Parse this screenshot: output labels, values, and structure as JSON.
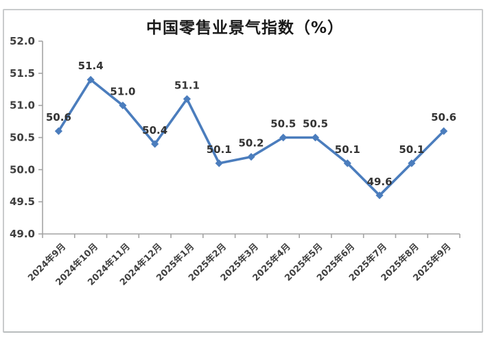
{
  "figure": {
    "title": "中国零售业景气指数（%）"
  },
  "chart_data": {
    "type": "line",
    "title": "中国零售业景气指数（%）",
    "categories": [
      "2024年9月",
      "2024年10月",
      "2024年11月",
      "2024年12月",
      "2025年1月",
      "2025年2月",
      "2025年3月",
      "2025年4月",
      "2025年5月",
      "2025年6月",
      "2025年7月",
      "2025年8月",
      "2025年9月"
    ],
    "values": [
      50.6,
      51.4,
      51.0,
      50.4,
      51.1,
      50.1,
      50.2,
      50.5,
      50.5,
      50.1,
      49.6,
      50.1,
      50.6
    ],
    "data_labels": [
      "50.6",
      "51.4",
      "51.0",
      "50.4",
      "51.1",
      "50.1",
      "50.2",
      "50.5",
      "50.5",
      "50.1",
      "49.6",
      "50.1",
      "50.6"
    ],
    "xlabel": "",
    "ylabel": "",
    "ylim": [
      49.0,
      52.0
    ],
    "ytick_step": 0.5,
    "ytick_labels": [
      "49.0",
      "49.5",
      "50.0",
      "50.5",
      "51.0",
      "51.5",
      "52.0"
    ],
    "grid": false,
    "legend": "none",
    "marker": "diamond",
    "line_color": "#4b7dbd",
    "axis_color": "#a3a3a3",
    "tick_label_color": "#3f3f3f",
    "data_label_color": "#333333"
  }
}
